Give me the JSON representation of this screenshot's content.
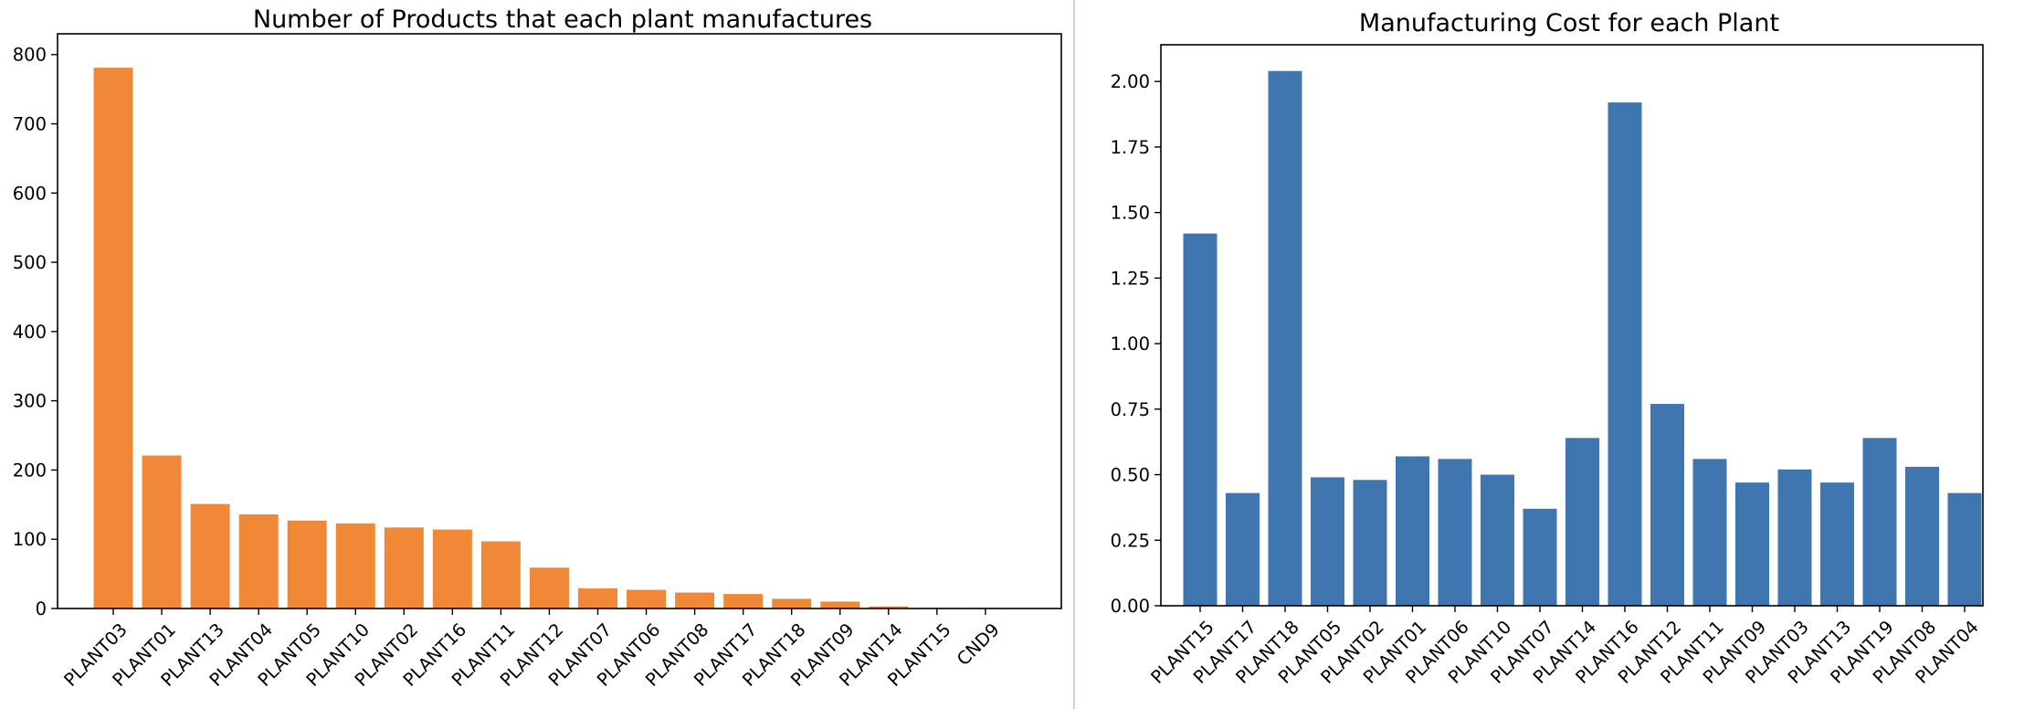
{
  "chart_data": [
    {
      "type": "bar",
      "title": "Number of Products that each plant manufactures",
      "xlabel": "",
      "ylabel": "",
      "categories": [
        "PLANT03",
        "PLANT01",
        "PLANT13",
        "PLANT04",
        "PLANT05",
        "PLANT10",
        "PLANT02",
        "PLANT16",
        "PLANT11",
        "PLANT12",
        "PLANT07",
        "PLANT06",
        "PLANT08",
        "PLANT17",
        "PLANT18",
        "PLANT09",
        "PLANT14",
        "PLANT15",
        "CND9"
      ],
      "values": [
        781,
        221,
        151,
        136,
        127,
        123,
        117,
        114,
        97,
        59,
        29,
        27,
        23,
        21,
        14,
        10,
        3,
        1,
        1
      ],
      "ylim": [
        0,
        830
      ],
      "yticks": [
        0,
        100,
        200,
        300,
        400,
        500,
        600,
        700,
        800
      ],
      "color": "#f08838",
      "grid": false,
      "xtick_rotation": 45
    },
    {
      "type": "bar",
      "title": "Manufacturing Cost for each Plant",
      "xlabel": "",
      "ylabel": "",
      "categories": [
        "PLANT15",
        "PLANT17",
        "PLANT18",
        "PLANT05",
        "PLANT02",
        "PLANT01",
        "PLANT06",
        "PLANT10",
        "PLANT07",
        "PLANT14",
        "PLANT16",
        "PLANT12",
        "PLANT11",
        "PLANT09",
        "PLANT03",
        "PLANT13",
        "PLANT19",
        "PLANT08",
        "PLANT04"
      ],
      "values": [
        1.42,
        0.43,
        2.04,
        0.49,
        0.48,
        0.57,
        0.56,
        0.5,
        0.37,
        0.64,
        1.92,
        0.77,
        0.56,
        0.47,
        0.52,
        0.47,
        0.64,
        0.53,
        0.43
      ],
      "ylim": [
        0,
        2.14
      ],
      "yticks": [
        "0.00",
        "0.25",
        "0.50",
        "0.75",
        "1.00",
        "1.25",
        "1.50",
        "1.75",
        "2.00"
      ],
      "color": "#3f76b0",
      "grid": false,
      "xtick_rotation": 45
    }
  ]
}
